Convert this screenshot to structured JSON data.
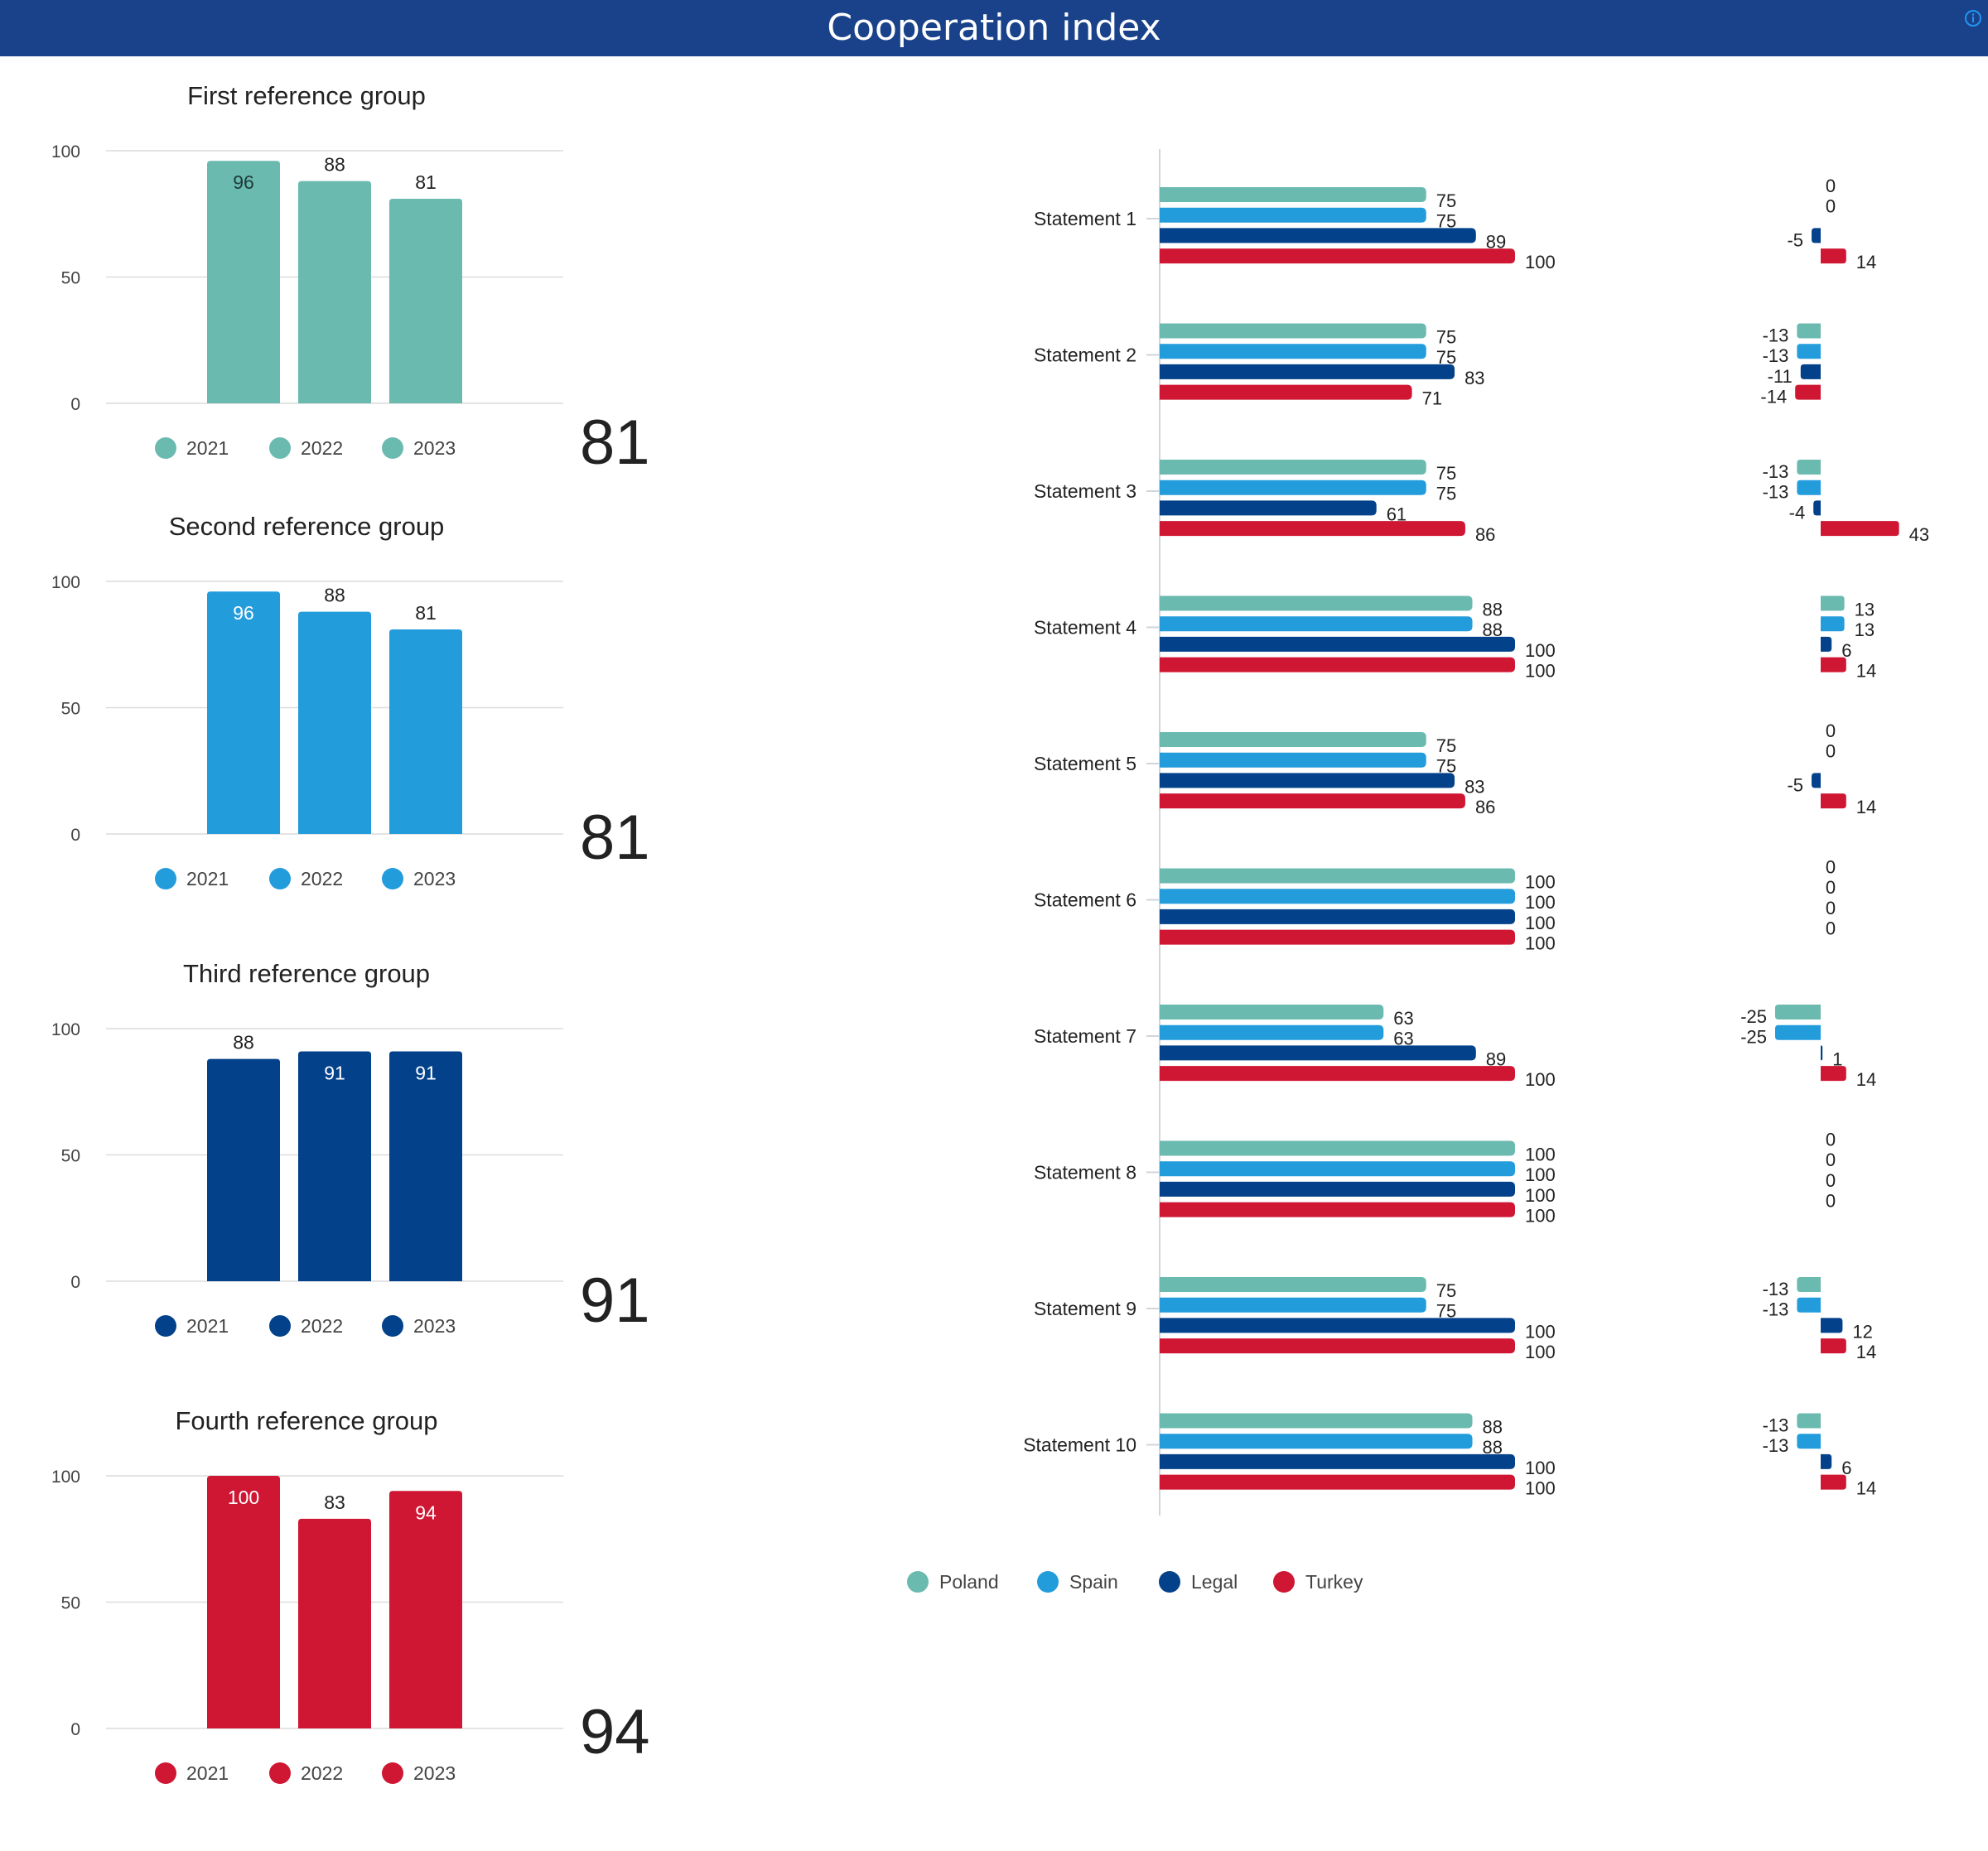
{
  "header": {
    "title": "Cooperation index",
    "info_icon": "info-icon"
  },
  "colors": {
    "header_bg": "#1a428a",
    "Poland": "#6bbab0",
    "Spain": "#239cdc",
    "Legal": "#03418a",
    "Turkey": "#cf1633"
  },
  "chart_data": [
    {
      "type": "bar",
      "title": "First reference group",
      "categories": [
        "2021",
        "2022",
        "2023"
      ],
      "values": [
        96,
        88,
        81
      ],
      "ylim": [
        0,
        100
      ],
      "yticks": [
        "0",
        "50",
        "100"
      ],
      "legend": [
        "2021",
        "2022",
        "2023"
      ],
      "color": "#6bbab0",
      "kpi": "81"
    },
    {
      "type": "bar",
      "title": "Second reference group",
      "categories": [
        "2021",
        "2022",
        "2023"
      ],
      "values": [
        96,
        88,
        81
      ],
      "ylim": [
        0,
        100
      ],
      "yticks": [
        "0",
        "50",
        "100"
      ],
      "legend": [
        "2021",
        "2022",
        "2023"
      ],
      "color": "#239cdc",
      "kpi": "81"
    },
    {
      "type": "bar",
      "title": "Third reference group",
      "categories": [
        "2021",
        "2022",
        "2023"
      ],
      "values": [
        88,
        91,
        91
      ],
      "ylim": [
        0,
        100
      ],
      "yticks": [
        "0",
        "50",
        "100"
      ],
      "legend": [
        "2021",
        "2022",
        "2023"
      ],
      "color": "#03418a",
      "kpi": "91"
    },
    {
      "type": "bar",
      "title": "Fourth reference group",
      "categories": [
        "2021",
        "2022",
        "2023"
      ],
      "values": [
        100,
        83,
        94
      ],
      "ylim": [
        0,
        100
      ],
      "yticks": [
        "0",
        "50",
        "100"
      ],
      "legend": [
        "2021",
        "2022",
        "2023"
      ],
      "color": "#cf1633",
      "kpi": "94"
    },
    {
      "type": "bar",
      "orientation": "horizontal",
      "categories": [
        "Statement 1",
        "Statement 2",
        "Statement 3",
        "Statement 4",
        "Statement 5",
        "Statement 6",
        "Statement 7",
        "Statement 8",
        "Statement 9",
        "Statement 10"
      ],
      "xlim": [
        0,
        100
      ],
      "legend_position": "bottom",
      "series": [
        {
          "name": "Poland",
          "values": [
            75,
            75,
            75,
            88,
            75,
            100,
            63,
            100,
            75,
            88
          ]
        },
        {
          "name": "Spain",
          "values": [
            75,
            75,
            75,
            88,
            75,
            100,
            63,
            100,
            75,
            88
          ]
        },
        {
          "name": "Legal",
          "values": [
            89,
            83,
            61,
            100,
            83,
            100,
            89,
            100,
            100,
            100
          ]
        },
        {
          "name": "Turkey",
          "values": [
            100,
            71,
            86,
            100,
            86,
            100,
            100,
            100,
            100,
            100
          ]
        }
      ]
    },
    {
      "type": "bar",
      "orientation": "horizontal",
      "categories": [
        "Statement 1",
        "Statement 2",
        "Statement 3",
        "Statement 4",
        "Statement 5",
        "Statement 6",
        "Statement 7",
        "Statement 8",
        "Statement 9",
        "Statement 10"
      ],
      "series": [
        {
          "name": "Poland",
          "values": [
            0,
            -13,
            -13,
            13,
            0,
            0,
            -25,
            0,
            -13,
            -13
          ]
        },
        {
          "name": "Spain",
          "values": [
            0,
            -13,
            -13,
            13,
            0,
            0,
            -25,
            0,
            -13,
            -13
          ]
        },
        {
          "name": "Legal",
          "values": [
            -5,
            -11,
            -4,
            6,
            -5,
            0,
            1,
            0,
            12,
            6
          ]
        },
        {
          "name": "Turkey",
          "values": [
            14,
            -14,
            43,
            14,
            14,
            0,
            14,
            0,
            14,
            14
          ]
        }
      ]
    }
  ]
}
